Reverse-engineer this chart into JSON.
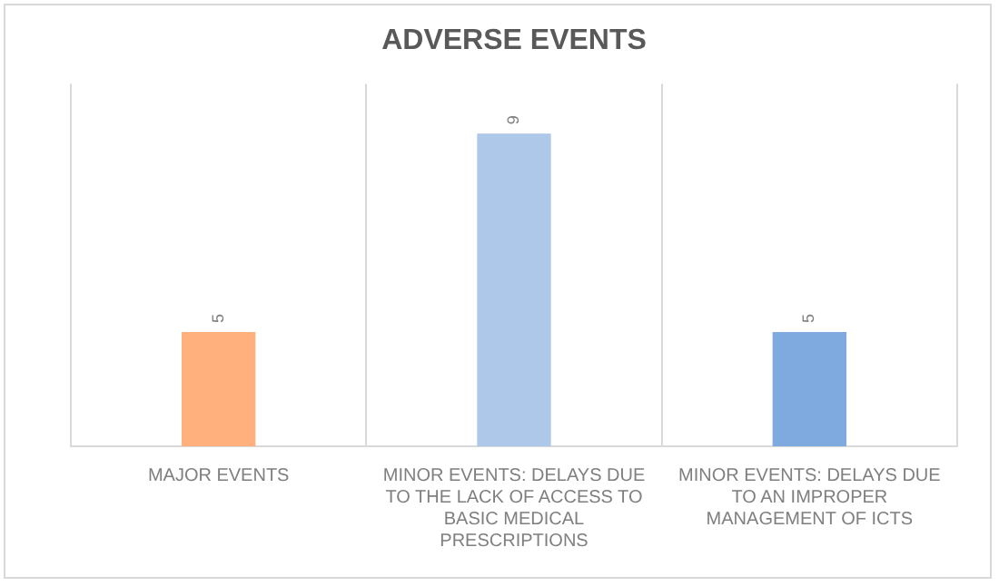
{
  "chart_data": {
    "type": "bar",
    "title": "ADVERSE EVENTS",
    "categories": [
      "MAJOR EVENTS",
      "MINOR EVENTS: DELAYS DUE TO THE LACK OF ACCESS TO BASIC MEDICAL PRESCRIPTIONS",
      "MINOR EVENTS: DELAYS DUE TO AN IMPROPER MANAGEMENT OF ICTS"
    ],
    "values": [
      5,
      9,
      5
    ],
    "colors": [
      "#ffb07c",
      "#aec8ea",
      "#7eaadf"
    ],
    "ylim": [
      2.7,
      10
    ],
    "data_labels": true,
    "grid": "x",
    "tick_labels": "x",
    "legend": false
  }
}
